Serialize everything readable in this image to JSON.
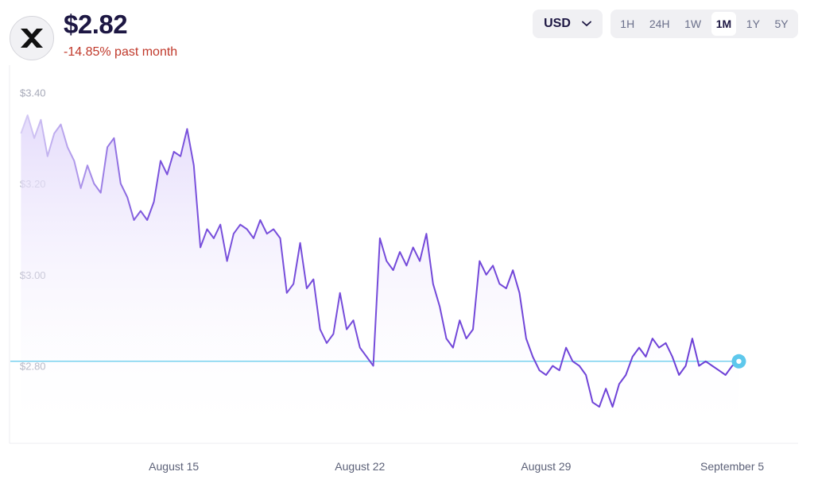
{
  "header": {
    "logo_icon": "xrp-logo-icon",
    "price": "$2.82",
    "change": "-14.85% past month",
    "change_color": "#c0392b"
  },
  "currency": {
    "selected": "USD",
    "icon": "chevron-down-icon"
  },
  "ranges": [
    {
      "label": "1H",
      "active": false
    },
    {
      "label": "24H",
      "active": false
    },
    {
      "label": "1W",
      "active": false
    },
    {
      "label": "1M",
      "active": true
    },
    {
      "label": "1Y",
      "active": false
    },
    {
      "label": "5Y",
      "active": false
    }
  ],
  "chart_data": {
    "type": "line",
    "line_color": "#6c3fd6",
    "reference_color": "#5ec8ec",
    "reference_value": 2.81,
    "ylim": [
      2.63,
      3.46
    ],
    "yticks": [
      {
        "value": 3.4,
        "label": "$3.40"
      },
      {
        "value": 3.2,
        "label": "$3.20"
      },
      {
        "value": 3.0,
        "label": "$3.00"
      },
      {
        "value": 2.8,
        "label": "$2.80"
      }
    ],
    "xlim": [
      "2025-08-09",
      "2025-09-07"
    ],
    "xticks": [
      {
        "date": "2025-08-15",
        "label": "August 15"
      },
      {
        "date": "2025-08-22",
        "label": "August 22"
      },
      {
        "date": "2025-08-29",
        "label": "August 29"
      },
      {
        "date": "2025-09-05",
        "label": "September 5"
      }
    ],
    "series": [
      {
        "points": [
          [
            "2025-08-09T06:00",
            3.31
          ],
          [
            "2025-08-09T12:00",
            3.35
          ],
          [
            "2025-08-09T18:00",
            3.3
          ],
          [
            "2025-08-10T00:00",
            3.34
          ],
          [
            "2025-08-10T06:00",
            3.26
          ],
          [
            "2025-08-10T12:00",
            3.31
          ],
          [
            "2025-08-10T18:00",
            3.33
          ],
          [
            "2025-08-11T00:00",
            3.28
          ],
          [
            "2025-08-11T06:00",
            3.25
          ],
          [
            "2025-08-11T12:00",
            3.19
          ],
          [
            "2025-08-11T18:00",
            3.24
          ],
          [
            "2025-08-12T00:00",
            3.2
          ],
          [
            "2025-08-12T06:00",
            3.18
          ],
          [
            "2025-08-12T12:00",
            3.28
          ],
          [
            "2025-08-12T18:00",
            3.3
          ],
          [
            "2025-08-13T00:00",
            3.2
          ],
          [
            "2025-08-13T06:00",
            3.17
          ],
          [
            "2025-08-13T12:00",
            3.12
          ],
          [
            "2025-08-13T18:00",
            3.14
          ],
          [
            "2025-08-14T00:00",
            3.12
          ],
          [
            "2025-08-14T06:00",
            3.16
          ],
          [
            "2025-08-14T12:00",
            3.25
          ],
          [
            "2025-08-14T18:00",
            3.22
          ],
          [
            "2025-08-15T00:00",
            3.27
          ],
          [
            "2025-08-15T06:00",
            3.26
          ],
          [
            "2025-08-15T12:00",
            3.32
          ],
          [
            "2025-08-15T18:00",
            3.24
          ],
          [
            "2025-08-16T00:00",
            3.06
          ],
          [
            "2025-08-16T06:00",
            3.1
          ],
          [
            "2025-08-16T12:00",
            3.08
          ],
          [
            "2025-08-16T18:00",
            3.11
          ],
          [
            "2025-08-17T00:00",
            3.03
          ],
          [
            "2025-08-17T06:00",
            3.09
          ],
          [
            "2025-08-17T12:00",
            3.11
          ],
          [
            "2025-08-17T18:00",
            3.1
          ],
          [
            "2025-08-18T00:00",
            3.08
          ],
          [
            "2025-08-18T06:00",
            3.12
          ],
          [
            "2025-08-18T12:00",
            3.09
          ],
          [
            "2025-08-18T18:00",
            3.1
          ],
          [
            "2025-08-19T00:00",
            3.08
          ],
          [
            "2025-08-19T06:00",
            2.96
          ],
          [
            "2025-08-19T12:00",
            2.98
          ],
          [
            "2025-08-19T18:00",
            3.07
          ],
          [
            "2025-08-20T00:00",
            2.97
          ],
          [
            "2025-08-20T06:00",
            2.99
          ],
          [
            "2025-08-20T12:00",
            2.88
          ],
          [
            "2025-08-20T18:00",
            2.85
          ],
          [
            "2025-08-21T00:00",
            2.87
          ],
          [
            "2025-08-21T06:00",
            2.96
          ],
          [
            "2025-08-21T12:00",
            2.88
          ],
          [
            "2025-08-21T18:00",
            2.9
          ],
          [
            "2025-08-22T00:00",
            2.84
          ],
          [
            "2025-08-22T06:00",
            2.82
          ],
          [
            "2025-08-22T12:00",
            2.8
          ],
          [
            "2025-08-22T18:00",
            3.08
          ],
          [
            "2025-08-23T00:00",
            3.03
          ],
          [
            "2025-08-23T06:00",
            3.01
          ],
          [
            "2025-08-23T12:00",
            3.05
          ],
          [
            "2025-08-23T18:00",
            3.02
          ],
          [
            "2025-08-24T00:00",
            3.06
          ],
          [
            "2025-08-24T06:00",
            3.03
          ],
          [
            "2025-08-24T12:00",
            3.09
          ],
          [
            "2025-08-24T18:00",
            2.98
          ],
          [
            "2025-08-25T00:00",
            2.93
          ],
          [
            "2025-08-25T06:00",
            2.86
          ],
          [
            "2025-08-25T12:00",
            2.84
          ],
          [
            "2025-08-25T18:00",
            2.9
          ],
          [
            "2025-08-26T00:00",
            2.86
          ],
          [
            "2025-08-26T06:00",
            2.88
          ],
          [
            "2025-08-26T12:00",
            3.03
          ],
          [
            "2025-08-26T18:00",
            3.0
          ],
          [
            "2025-08-27T00:00",
            3.02
          ],
          [
            "2025-08-27T06:00",
            2.98
          ],
          [
            "2025-08-27T12:00",
            2.97
          ],
          [
            "2025-08-27T18:00",
            3.01
          ],
          [
            "2025-08-28T00:00",
            2.96
          ],
          [
            "2025-08-28T06:00",
            2.86
          ],
          [
            "2025-08-28T12:00",
            2.82
          ],
          [
            "2025-08-28T18:00",
            2.79
          ],
          [
            "2025-08-29T00:00",
            2.78
          ],
          [
            "2025-08-29T06:00",
            2.8
          ],
          [
            "2025-08-29T12:00",
            2.79
          ],
          [
            "2025-08-29T18:00",
            2.84
          ],
          [
            "2025-08-30T00:00",
            2.81
          ],
          [
            "2025-08-30T06:00",
            2.8
          ],
          [
            "2025-08-30T12:00",
            2.78
          ],
          [
            "2025-08-30T18:00",
            2.72
          ],
          [
            "2025-08-31T00:00",
            2.71
          ],
          [
            "2025-08-31T06:00",
            2.75
          ],
          [
            "2025-08-31T12:00",
            2.71
          ],
          [
            "2025-08-31T18:00",
            2.76
          ],
          [
            "2025-09-01T00:00",
            2.78
          ],
          [
            "2025-09-01T06:00",
            2.82
          ],
          [
            "2025-09-01T12:00",
            2.84
          ],
          [
            "2025-09-01T18:00",
            2.82
          ],
          [
            "2025-09-02T00:00",
            2.86
          ],
          [
            "2025-09-02T06:00",
            2.84
          ],
          [
            "2025-09-02T12:00",
            2.85
          ],
          [
            "2025-09-02T18:00",
            2.82
          ],
          [
            "2025-09-03T00:00",
            2.78
          ],
          [
            "2025-09-03T06:00",
            2.8
          ],
          [
            "2025-09-03T12:00",
            2.86
          ],
          [
            "2025-09-03T18:00",
            2.8
          ],
          [
            "2025-09-04T00:00",
            2.81
          ],
          [
            "2025-09-04T06:00",
            2.8
          ],
          [
            "2025-09-04T12:00",
            2.79
          ],
          [
            "2025-09-04T18:00",
            2.78
          ],
          [
            "2025-09-05T00:00",
            2.8
          ],
          [
            "2025-09-05T06:00",
            2.81
          ]
        ]
      }
    ]
  }
}
